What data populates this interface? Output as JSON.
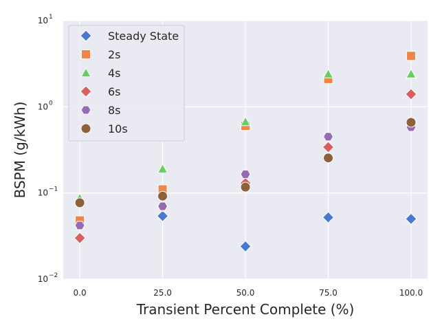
{
  "chart_data": {
    "type": "scatter",
    "xlabel": "Transient Percent Complete (%)",
    "ylabel": "BSPM (g/kWh)",
    "x_scale": "linear",
    "y_scale": "log",
    "xlim": [
      -5,
      105
    ],
    "ylim": [
      0.01,
      10
    ],
    "x_ticks": [
      0,
      25,
      50,
      75,
      100
    ],
    "x_tick_labels": [
      "0.0",
      "25.0",
      "50.0",
      "75.0",
      "100.0"
    ],
    "y_ticks": [
      0.01,
      0.1,
      1,
      10
    ],
    "y_tick_labels": [
      {
        "base": "10",
        "exp": "−2"
      },
      {
        "base": "10",
        "exp": "−1"
      },
      {
        "base": "10",
        "exp": "0"
      },
      {
        "base": "10",
        "exp": "1"
      }
    ],
    "grid": true,
    "legend_position": "upper-left",
    "series": [
      {
        "name": "Steady State",
        "marker": "diamond",
        "color": "#4878d0",
        "points": [
          [
            25,
            0.054
          ],
          [
            50,
            0.024
          ],
          [
            75,
            0.052
          ],
          [
            100,
            0.05
          ]
        ]
      },
      {
        "name": "2s",
        "marker": "square",
        "color": "#ee854a",
        "points": [
          [
            0,
            0.048
          ],
          [
            25,
            0.11
          ],
          [
            50,
            0.6
          ],
          [
            75,
            2.1
          ],
          [
            100,
            3.9
          ]
        ]
      },
      {
        "name": "4s",
        "marker": "triangle",
        "color": "#6acc64",
        "points": [
          [
            0,
            0.087
          ],
          [
            25,
            0.19
          ],
          [
            50,
            0.67
          ],
          [
            75,
            2.4
          ],
          [
            100,
            2.4
          ]
        ]
      },
      {
        "name": "6s",
        "marker": "diamond",
        "color": "#d65f5f",
        "points": [
          [
            0,
            0.03
          ],
          [
            25,
            0.07
          ],
          [
            50,
            0.13
          ],
          [
            75,
            0.34
          ],
          [
            100,
            1.4
          ]
        ]
      },
      {
        "name": "8s",
        "marker": "hexagon",
        "color": "#956cb4",
        "points": [
          [
            0,
            0.042
          ],
          [
            25,
            0.07
          ],
          [
            50,
            0.165
          ],
          [
            75,
            0.45
          ],
          [
            100,
            0.58
          ]
        ]
      },
      {
        "name": "10s",
        "marker": "circle",
        "color": "#8c613c",
        "points": [
          [
            0,
            0.077
          ],
          [
            25,
            0.092
          ],
          [
            50,
            0.117
          ],
          [
            75,
            0.255
          ],
          [
            100,
            0.66
          ]
        ]
      }
    ]
  }
}
